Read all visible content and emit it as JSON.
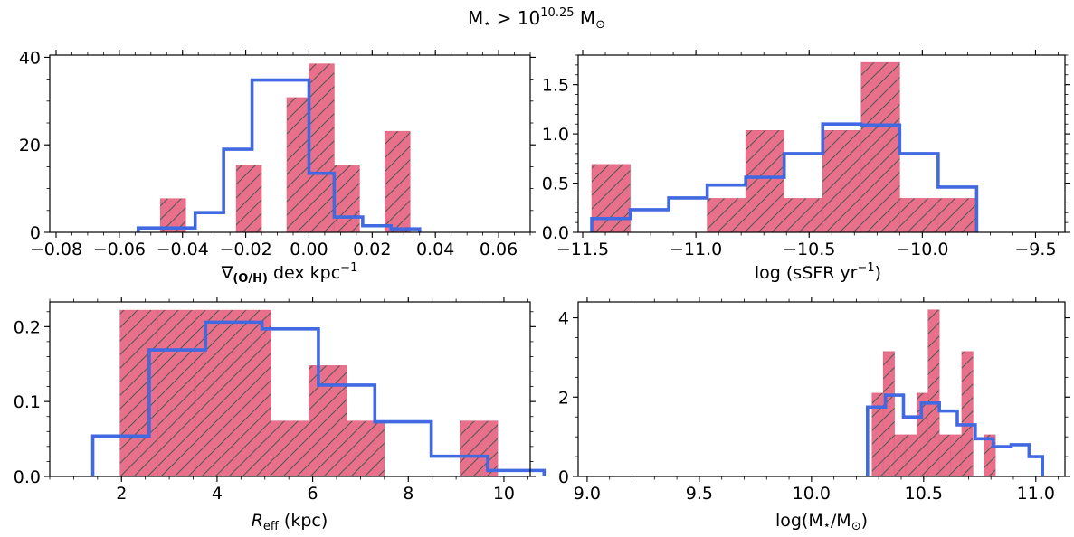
{
  "figure": {
    "title_main": "M",
    "title_sub": "⋆",
    "title_gt": " > 10",
    "title_exp": "10.25",
    "title_unit": " M",
    "title_sun": "⊙"
  },
  "colors": {
    "bar_fill": "#e8708a",
    "bar_hatch": "#555555",
    "step_line": "#4169e1",
    "axes": "#000000"
  },
  "chart_data": [
    {
      "id": "metallicity-gradient",
      "type": "bar",
      "xlabel_parts": [
        "∇",
        "(O/H)",
        " dex kpc",
        "−1"
      ],
      "xlim": [
        -0.082,
        0.07
      ],
      "ylim": [
        0,
        40.5
      ],
      "xticks": [
        -0.08,
        -0.06,
        -0.04,
        -0.02,
        0.0,
        0.02,
        0.04,
        0.06
      ],
      "xtick_labels": [
        "−0.08",
        "−0.06",
        "−0.04",
        "−0.02",
        "0.00",
        "0.02",
        "0.04",
        "0.06"
      ],
      "yticks": [
        0,
        20,
        40
      ],
      "ytick_labels": [
        "0",
        "20",
        "40"
      ],
      "x_minor": 0.005,
      "y_minor": 5,
      "bins": [
        {
          "x0": -0.047,
          "x1": -0.039,
          "value": 7.7
        },
        {
          "x0": -0.023,
          "x1": -0.015,
          "value": 15.4
        },
        {
          "x0": -0.007,
          "x1": 0.0,
          "value": 30.8
        },
        {
          "x0": 0.0,
          "x1": 0.008,
          "value": 38.5
        },
        {
          "x0": 0.008,
          "x1": 0.016,
          "value": 15.4
        },
        {
          "x0": 0.024,
          "x1": 0.032,
          "value": 23.1
        }
      ],
      "step_edges": [
        -0.054,
        -0.045,
        -0.036,
        -0.027,
        -0.018,
        -0.009,
        0.0,
        0.008,
        0.017,
        0.026,
        0.035
      ],
      "step_values": [
        1.0,
        1.0,
        4.5,
        19.0,
        34.8,
        34.8,
        13.5,
        3.5,
        1.5,
        0.8
      ]
    },
    {
      "id": "ssfr",
      "type": "bar",
      "xlabel_parts": [
        "log  (sSFR yr",
        "−1",
        ")"
      ],
      "xlim": [
        -11.52,
        -9.37
      ],
      "ylim": [
        0,
        1.8
      ],
      "xticks": [
        -11.5,
        -11.0,
        -10.5,
        -10.0,
        -9.5
      ],
      "xtick_labels": [
        "−11.5",
        "−11.0",
        "−10.5",
        "−10.0",
        "−9.5"
      ],
      "yticks": [
        0.0,
        0.5,
        1.0,
        1.5
      ],
      "ytick_labels": [
        "0.0",
        "0.5",
        "1.0",
        "1.5"
      ],
      "x_minor": 0.1,
      "y_minor": 0.1,
      "bins": [
        {
          "x0": -11.46,
          "x1": -11.29,
          "value": 0.69
        },
        {
          "x0": -10.95,
          "x1": -10.78,
          "value": 0.345
        },
        {
          "x0": -10.78,
          "x1": -10.61,
          "value": 1.035
        },
        {
          "x0": -10.61,
          "x1": -10.44,
          "value": 0.345
        },
        {
          "x0": -10.44,
          "x1": -10.27,
          "value": 1.035
        },
        {
          "x0": -10.27,
          "x1": -10.1,
          "value": 1.725
        },
        {
          "x0": -10.1,
          "x1": -9.93,
          "value": 0.345
        },
        {
          "x0": -9.93,
          "x1": -9.76,
          "value": 0.345
        }
      ],
      "step_edges": [
        -11.46,
        -11.29,
        -11.12,
        -10.95,
        -10.78,
        -10.61,
        -10.44,
        -10.27,
        -10.1,
        -9.93,
        -9.76
      ],
      "step_values": [
        0.14,
        0.23,
        0.35,
        0.48,
        0.56,
        0.8,
        1.1,
        1.09,
        0.8,
        0.46
      ]
    },
    {
      "id": "effective-radius",
      "type": "bar",
      "xlabel_parts": [
        "R",
        "eff",
        " (kpc)"
      ],
      "xlim": [
        0.5,
        10.55
      ],
      "ylim": [
        0,
        0.233
      ],
      "xticks": [
        2,
        4,
        6,
        8,
        10
      ],
      "xtick_labels": [
        "2",
        "4",
        "6",
        "8",
        "10"
      ],
      "yticks": [
        0.0,
        0.1,
        0.2
      ],
      "ytick_labels": [
        "0.0",
        "0.1",
        "0.2"
      ],
      "x_minor": 0.5,
      "y_minor": 0.02,
      "bins": [
        {
          "x0": 1.97,
          "x1": 2.76,
          "value": 0.222
        },
        {
          "x0": 2.76,
          "x1": 3.55,
          "value": 0.222
        },
        {
          "x0": 3.55,
          "x1": 4.34,
          "value": 0.222
        },
        {
          "x0": 4.34,
          "x1": 5.13,
          "value": 0.222
        },
        {
          "x0": 5.13,
          "x1": 5.92,
          "value": 0.074
        },
        {
          "x0": 5.92,
          "x1": 6.71,
          "value": 0.148
        },
        {
          "x0": 6.71,
          "x1": 7.5,
          "value": 0.074
        },
        {
          "x0": 9.08,
          "x1": 9.87,
          "value": 0.074
        }
      ],
      "step_edges": [
        1.4,
        2.58,
        3.76,
        4.94,
        6.12,
        7.3,
        8.48,
        9.66,
        10.84
      ],
      "step_values": [
        0.054,
        0.169,
        0.206,
        0.197,
        0.122,
        0.073,
        0.027,
        0.008
      ]
    },
    {
      "id": "stellar-mass",
      "type": "bar",
      "xlabel_parts": [
        "log(M",
        "⋆",
        "/M",
        "⊙",
        ")"
      ],
      "xlim": [
        8.96,
        11.13
      ],
      "ylim": [
        0,
        4.4
      ],
      "xticks": [
        9.0,
        9.5,
        10.0,
        10.5,
        11.0
      ],
      "xtick_labels": [
        "9.0",
        "9.5",
        "10.0",
        "10.5",
        "11.0"
      ],
      "yticks": [
        0,
        2,
        4
      ],
      "ytick_labels": [
        "0",
        "2",
        "4"
      ],
      "x_minor": 0.1,
      "y_minor": 0.5,
      "bins": [
        {
          "x0": 10.27,
          "x1": 10.32,
          "value": 2.1
        },
        {
          "x0": 10.32,
          "x1": 10.37,
          "value": 3.15
        },
        {
          "x0": 10.37,
          "x1": 10.42,
          "value": 1.05
        },
        {
          "x0": 10.42,
          "x1": 10.47,
          "value": 1.05
        },
        {
          "x0": 10.47,
          "x1": 10.52,
          "value": 2.1
        },
        {
          "x0": 10.52,
          "x1": 10.57,
          "value": 4.2
        },
        {
          "x0": 10.57,
          "x1": 10.62,
          "value": 1.05
        },
        {
          "x0": 10.62,
          "x1": 10.67,
          "value": 1.05
        },
        {
          "x0": 10.67,
          "x1": 10.72,
          "value": 3.15
        },
        {
          "x0": 10.77,
          "x1": 10.82,
          "value": 1.05
        }
      ],
      "step_edges": [
        10.25,
        10.33,
        10.41,
        10.49,
        10.57,
        10.65,
        10.73,
        10.81,
        10.89,
        10.97,
        11.03
      ],
      "step_values": [
        1.75,
        2.05,
        1.5,
        1.85,
        1.65,
        1.3,
        0.95,
        0.75,
        0.8,
        0.5
      ]
    }
  ]
}
